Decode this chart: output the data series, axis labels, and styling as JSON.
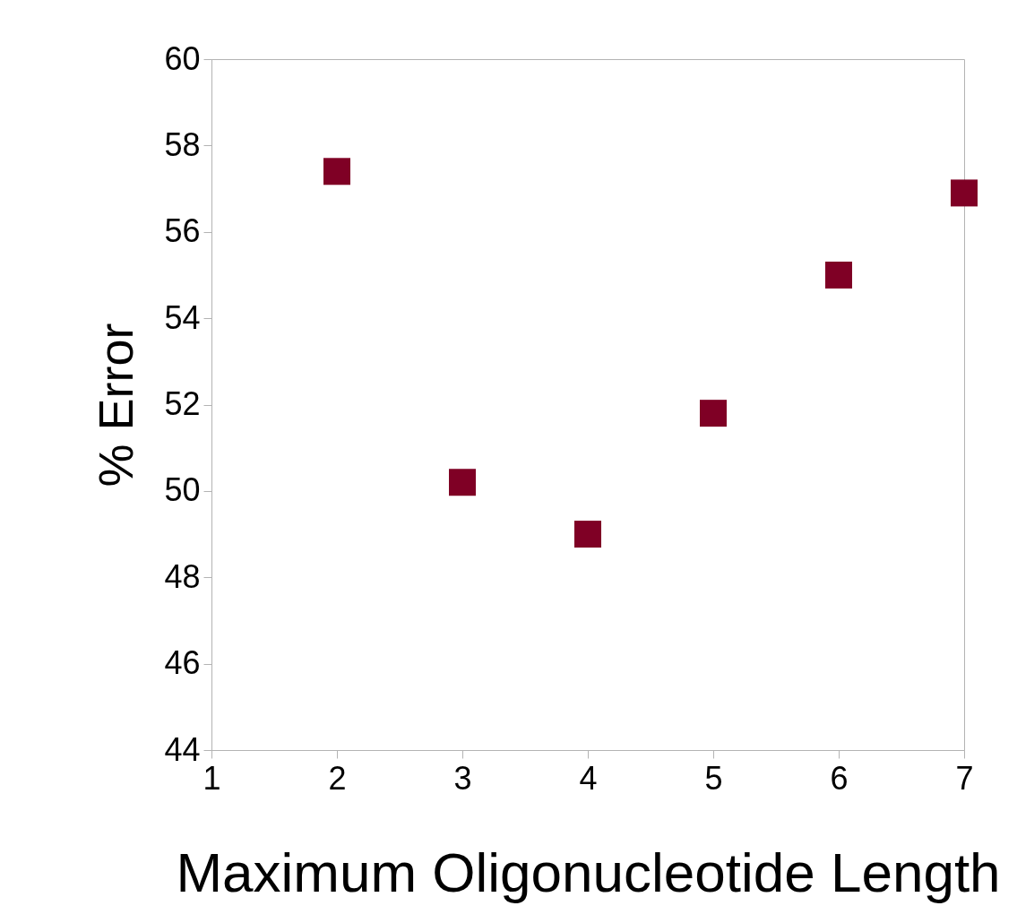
{
  "chart_data": {
    "type": "scatter",
    "xlabel": "Maximum Oligonucleotide Length",
    "ylabel": "% Error",
    "x": [
      2,
      3,
      4,
      5,
      6,
      7
    ],
    "series": [
      {
        "color": "#7f0025",
        "values": [
          57.4,
          50.2,
          49.0,
          51.8,
          55.0,
          56.9
        ]
      }
    ],
    "xlim": [
      1,
      7
    ],
    "xticks": [
      1,
      2,
      3,
      4,
      5,
      6,
      7
    ],
    "ylim": [
      44,
      60
    ],
    "yticks": [
      44,
      46,
      48,
      50,
      52,
      54,
      56,
      58,
      60
    ],
    "marker": "square"
  }
}
